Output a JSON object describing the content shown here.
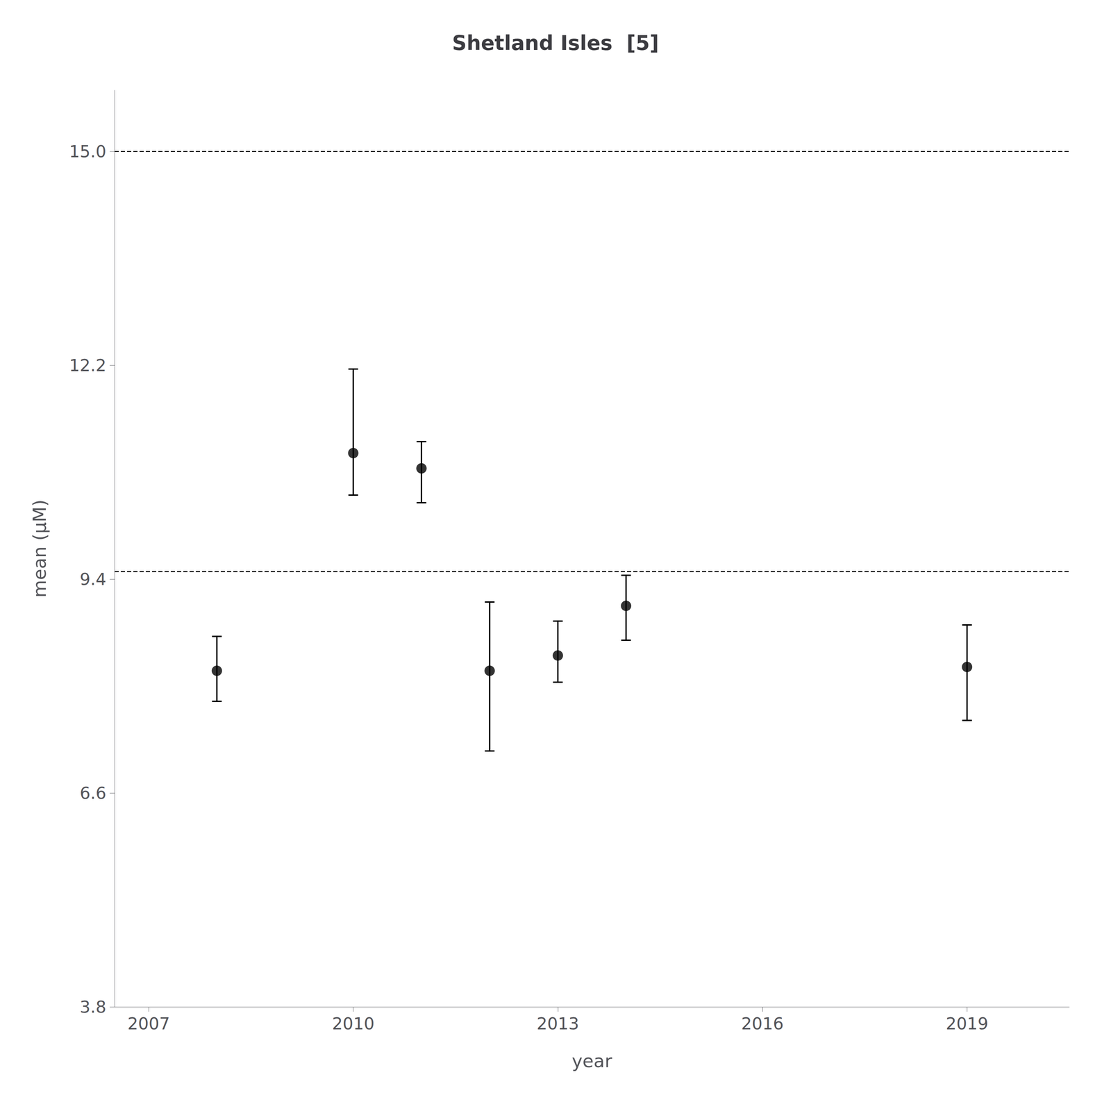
{
  "chart_data": {
    "type": "scatter",
    "title": "Shetland Isles  [5]",
    "xlabel": "year",
    "ylabel": "mean (μM)",
    "x": [
      2008,
      2010,
      2011,
      2012,
      2013,
      2014,
      2019
    ],
    "values": [
      8.2,
      11.05,
      10.85,
      8.2,
      8.4,
      9.05,
      8.25
    ],
    "errors_upper": [
      0.45,
      1.1,
      0.35,
      0.9,
      0.45,
      0.4,
      0.55
    ],
    "errors_lower": [
      0.4,
      0.55,
      0.45,
      1.05,
      0.35,
      0.45,
      0.7
    ],
    "hlines": [
      9.5,
      15.0
    ],
    "color": "black",
    "marker": "circle",
    "line_style": "dashed",
    "xlim": [
      2006.5,
      2020.5
    ],
    "xticks": [
      2007,
      2010,
      2013,
      2016,
      2019
    ],
    "ylim": [
      3.8,
      15.8
    ],
    "yticks": [
      3.8,
      6.6,
      9.4,
      12.2,
      {
        "value": 15,
        "label": "15.0"
      }
    ],
    "grid": false
  }
}
